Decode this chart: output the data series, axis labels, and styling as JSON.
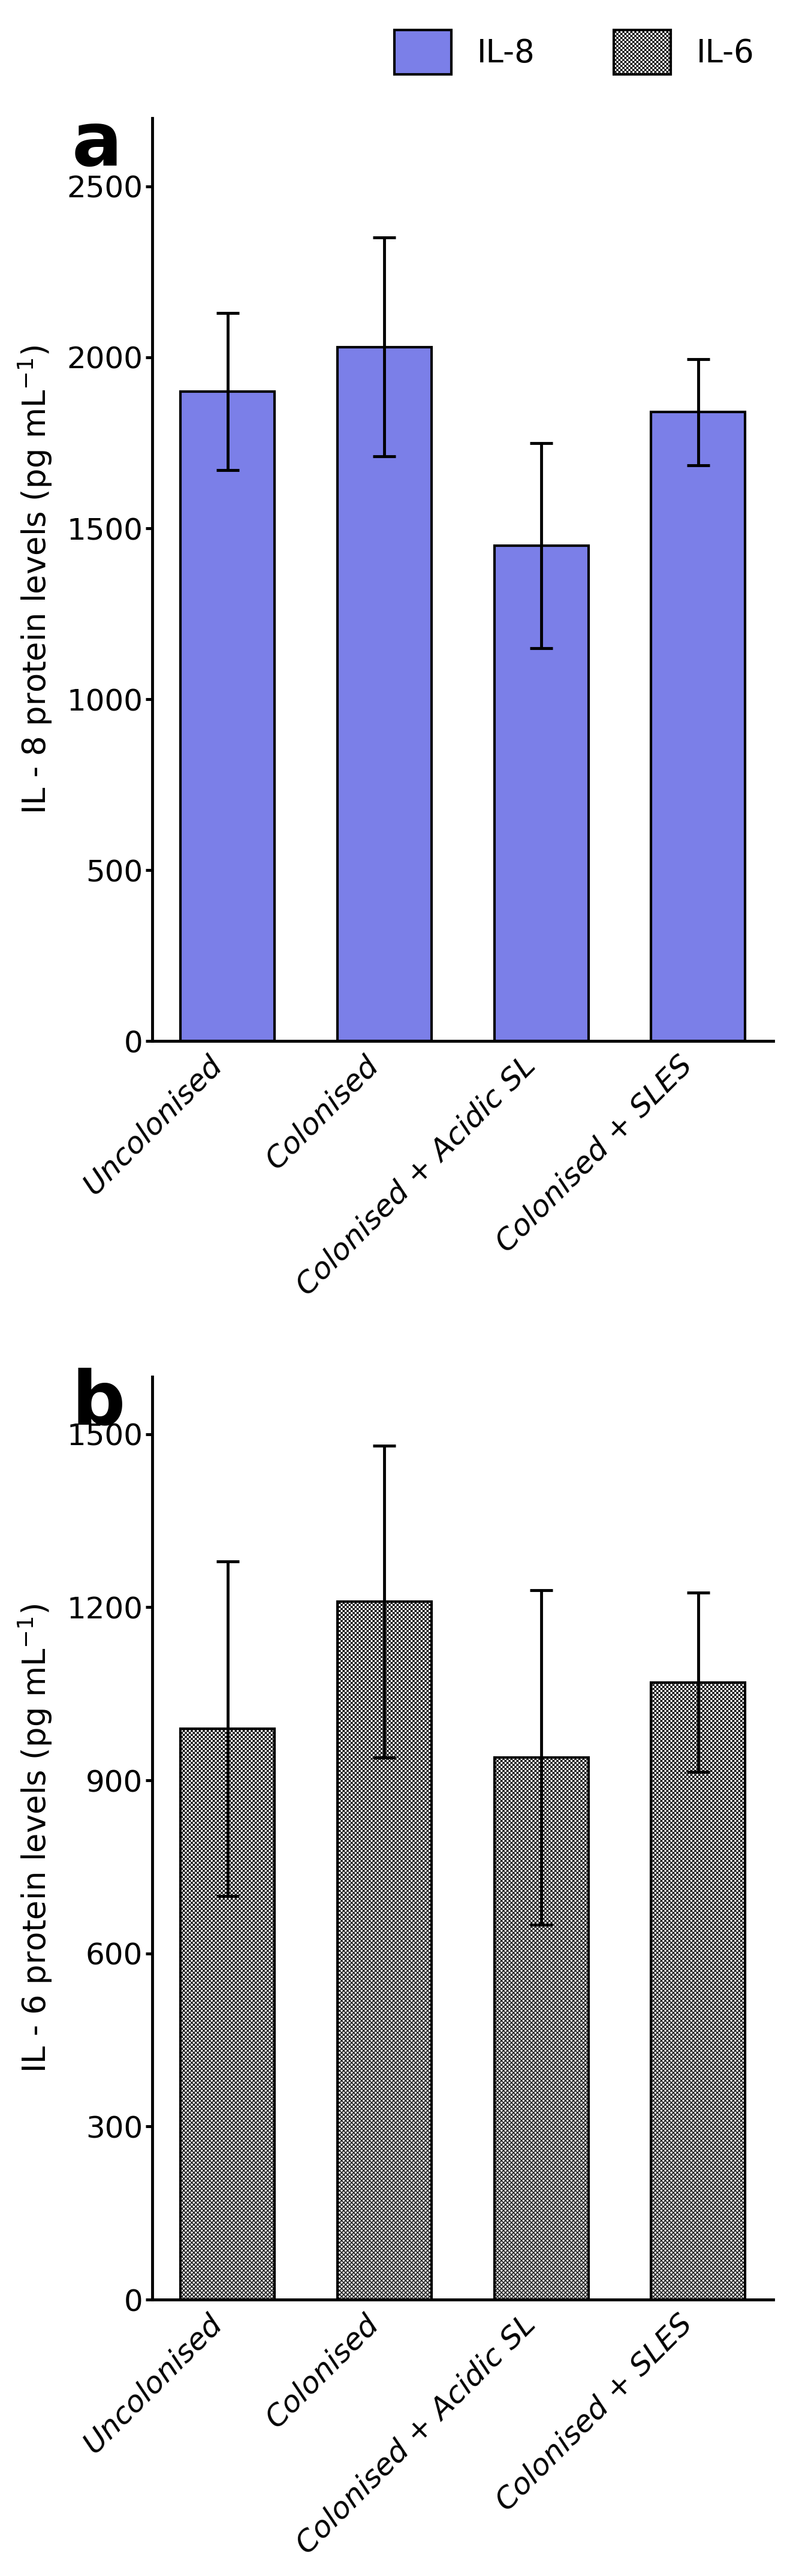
{
  "categories": [
    "Uncolonised",
    "Colonised",
    "Colonised + Acidic SL",
    "Colonised + SLES"
  ],
  "il8_values": [
    1900,
    2030,
    1450,
    1840
  ],
  "il8_errors": [
    230,
    320,
    300,
    155
  ],
  "il6_values": [
    990,
    1210,
    940,
    1070
  ],
  "il6_errors": [
    290,
    270,
    290,
    155
  ],
  "il8_color": "#7B7FE8",
  "il8_edge_color": "#000000",
  "il6_color": "#ffffff",
  "il6_edge_color": "#000000",
  "bar_width": 0.6,
  "panel_a_ylabel": "IL - 8 protein levels (pg mL$^{-1}$)",
  "panel_b_ylabel": "IL - 6 protein levels (pg mL$^{-1}$)",
  "panel_a_ylim": [
    0,
    2700
  ],
  "panel_b_ylim": [
    0,
    1600
  ],
  "panel_a_yticks": [
    0,
    500,
    1000,
    1500,
    2000,
    2500
  ],
  "panel_b_yticks": [
    0,
    300,
    600,
    900,
    1200,
    1500
  ],
  "legend_label_il8": "IL-8",
  "legend_label_il6": "IL-6",
  "panel_a_label": "a",
  "panel_b_label": "b",
  "tick_fontsize": 36,
  "label_fontsize": 38,
  "legend_fontsize": 38,
  "panel_label_fontsize": 90,
  "errorbar_capsize": 14,
  "errorbar_linewidth": 3.5,
  "errorbar_capthick": 3.5,
  "bar_linewidth": 3.0,
  "spine_linewidth": 3.5
}
